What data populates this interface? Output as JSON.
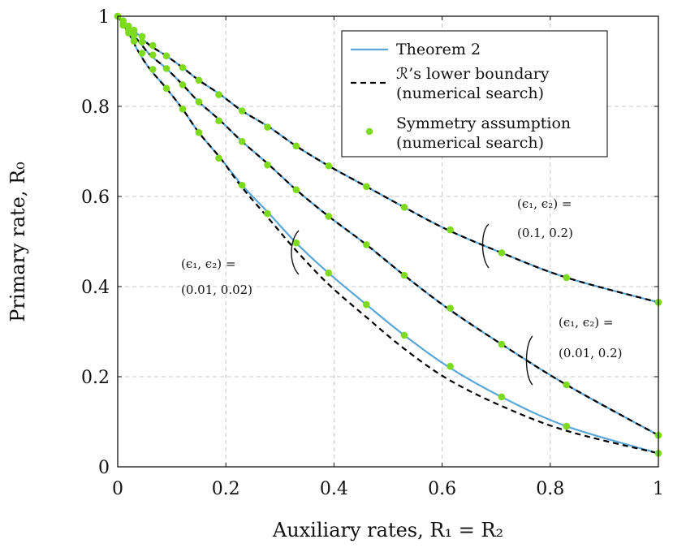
{
  "chart_data": {
    "type": "line",
    "title": "",
    "xlabel": "Auxiliary rates, R₁ = R₂",
    "ylabel": "Primary rate, R₀",
    "xlim": [
      0,
      1
    ],
    "ylim": [
      0,
      1
    ],
    "x_ticks": [
      "0",
      "0.2",
      "0.4",
      "0.6",
      "0.8",
      "1"
    ],
    "y_ticks": [
      "0",
      "0.2",
      "0.4",
      "0.6",
      "0.8",
      "1"
    ],
    "grid": true,
    "legend_position": "top-right",
    "legend": [
      {
        "label": "Theorem 2",
        "style": "solid",
        "color": "#5aa6d6"
      },
      {
        "label": "ℛ’s lower boundary",
        "label2": "(numerical search)",
        "style": "dashed",
        "color": "#000000"
      },
      {
        "label": "Symmetry assumption",
        "label2": "(numerical search)",
        "style": "marker",
        "color": "#7ddb1e"
      }
    ],
    "series": [
      {
        "name": "(ε₁, ε₂) = (0.1, 0.2)",
        "theorem2": {
          "x": [
            0,
            0.02,
            0.04,
            0.06,
            0.09,
            0.12,
            0.15,
            0.19,
            0.23,
            0.28,
            0.33,
            0.39,
            0.46,
            0.53,
            0.61,
            0.71,
            0.83,
            1.0
          ],
          "y": [
            1.0,
            0.978,
            0.957,
            0.935,
            0.912,
            0.886,
            0.858,
            0.826,
            0.79,
            0.754,
            0.712,
            0.668,
            0.622,
            0.576,
            0.526,
            0.475,
            0.42,
            0.365
          ]
        },
        "lower_boundary": {
          "x": [
            0,
            0.02,
            0.04,
            0.06,
            0.09,
            0.12,
            0.15,
            0.19,
            0.23,
            0.28,
            0.33,
            0.39,
            0.46,
            0.53,
            0.61,
            0.71,
            0.83,
            1.0
          ],
          "y": [
            1.0,
            0.978,
            0.957,
            0.935,
            0.912,
            0.886,
            0.858,
            0.826,
            0.79,
            0.754,
            0.712,
            0.668,
            0.622,
            0.576,
            0.526,
            0.475,
            0.42,
            0.365
          ]
        },
        "symmetry_points": {
          "x": [
            0,
            0.01,
            0.02,
            0.03,
            0.045,
            0.065,
            0.09,
            0.12,
            0.15,
            0.187,
            0.23,
            0.277,
            0.33,
            0.39,
            0.46,
            0.53,
            0.615,
            0.71,
            0.83,
            1.0
          ],
          "y": [
            1.0,
            0.99,
            0.978,
            0.969,
            0.955,
            0.935,
            0.912,
            0.886,
            0.858,
            0.826,
            0.79,
            0.754,
            0.712,
            0.668,
            0.622,
            0.576,
            0.526,
            0.475,
            0.42,
            0.365
          ]
        }
      },
      {
        "name": "(ε₁, ε₂) = (0.01, 0.2)",
        "theorem2": {
          "x": [
            0,
            0.02,
            0.04,
            0.06,
            0.09,
            0.12,
            0.15,
            0.19,
            0.23,
            0.28,
            0.33,
            0.39,
            0.46,
            0.53,
            0.61,
            0.71,
            0.83,
            1.0
          ],
          "y": [
            1.0,
            0.97,
            0.943,
            0.914,
            0.884,
            0.848,
            0.81,
            0.768,
            0.722,
            0.67,
            0.615,
            0.556,
            0.493,
            0.425,
            0.352,
            0.272,
            0.182,
            0.07
          ]
        },
        "lower_boundary": {
          "x": [
            0,
            0.02,
            0.04,
            0.06,
            0.09,
            0.12,
            0.15,
            0.19,
            0.23,
            0.28,
            0.33,
            0.39,
            0.46,
            0.53,
            0.61,
            0.71,
            0.83,
            1.0
          ],
          "y": [
            1.0,
            0.97,
            0.943,
            0.914,
            0.884,
            0.848,
            0.81,
            0.768,
            0.722,
            0.67,
            0.615,
            0.556,
            0.493,
            0.425,
            0.352,
            0.272,
            0.182,
            0.07
          ]
        },
        "symmetry_points": {
          "x": [
            0,
            0.01,
            0.02,
            0.03,
            0.045,
            0.065,
            0.09,
            0.12,
            0.15,
            0.187,
            0.23,
            0.277,
            0.33,
            0.39,
            0.46,
            0.53,
            0.615,
            0.71,
            0.83,
            1.0
          ],
          "y": [
            1.0,
            0.985,
            0.97,
            0.958,
            0.943,
            0.914,
            0.884,
            0.848,
            0.81,
            0.768,
            0.722,
            0.67,
            0.615,
            0.556,
            0.493,
            0.425,
            0.352,
            0.272,
            0.182,
            0.07
          ]
        }
      },
      {
        "name": "(ε₁, ε₂) = (0.01, 0.02)",
        "theorem2": {
          "x": [
            0,
            0.02,
            0.04,
            0.06,
            0.09,
            0.12,
            0.15,
            0.19,
            0.23,
            0.28,
            0.33,
            0.39,
            0.46,
            0.53,
            0.61,
            0.71,
            0.83,
            1.0
          ],
          "y": [
            1.0,
            0.963,
            0.918,
            0.882,
            0.84,
            0.794,
            0.742,
            0.685,
            0.625,
            0.562,
            0.497,
            0.43,
            0.36,
            0.292,
            0.223,
            0.155,
            0.09,
            0.03
          ]
        },
        "lower_boundary": {
          "x": [
            0,
            0.02,
            0.04,
            0.06,
            0.09,
            0.12,
            0.15,
            0.19,
            0.23,
            0.28,
            0.33,
            0.39,
            0.46,
            0.53,
            0.61,
            0.71,
            0.83,
            1.0
          ],
          "y": [
            1.0,
            0.963,
            0.918,
            0.882,
            0.84,
            0.794,
            0.742,
            0.685,
            0.62,
            0.55,
            0.48,
            0.405,
            0.332,
            0.262,
            0.195,
            0.135,
            0.08,
            0.03
          ]
        },
        "symmetry_points": {
          "x": [
            0,
            0.01,
            0.02,
            0.03,
            0.045,
            0.065,
            0.09,
            0.12,
            0.15,
            0.187,
            0.23,
            0.277,
            0.33,
            0.39,
            0.46,
            0.53,
            0.615,
            0.71,
            0.83,
            1.0
          ],
          "y": [
            1.0,
            0.98,
            0.963,
            0.945,
            0.918,
            0.882,
            0.84,
            0.794,
            0.742,
            0.685,
            0.625,
            0.562,
            0.497,
            0.43,
            0.36,
            0.292,
            0.223,
            0.155,
            0.09,
            0.03
          ]
        }
      }
    ],
    "annotations": [
      {
        "line1": "(ϵ₁, ϵ₂) =",
        "line2": "(0.1, 0.2)"
      },
      {
        "line1": "(ϵ₁, ϵ₂) =",
        "line2": "(0.01, 0.2)"
      },
      {
        "line1": "(ϵ₁, ϵ₂) =",
        "line2": "(0.01, 0.02)"
      }
    ]
  },
  "colors": {
    "theorem": "#5aa6d6",
    "boundary": "#000000",
    "marker": "#7ddb1e",
    "grid": "#c8c8c8"
  }
}
